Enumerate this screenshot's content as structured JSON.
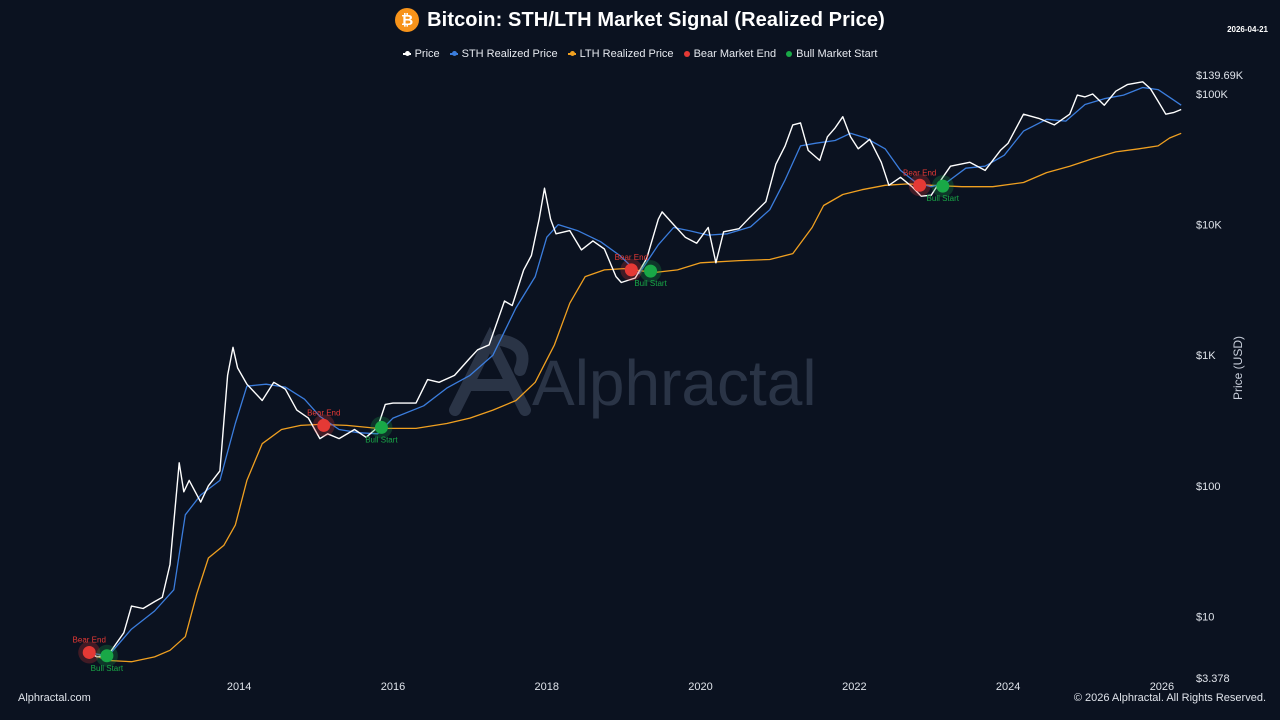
{
  "header": {
    "title": "Bitcoin: STH/LTH Market Signal (Realized Price)",
    "date": "2026-04-21",
    "icon": "bitcoin-icon",
    "icon_glyph": "₿",
    "icon_color": "#f7931a"
  },
  "legend": {
    "items": [
      {
        "label": "Price",
        "color": "#ffffff",
        "kind": "line"
      },
      {
        "label": "STH Realized Price",
        "color": "#3b7ddd",
        "kind": "line"
      },
      {
        "label": "LTH Realized Price",
        "color": "#f0a020",
        "kind": "line"
      },
      {
        "label": "Bear Market End",
        "color": "#e53935",
        "kind": "dot"
      },
      {
        "label": "Bull Market Start",
        "color": "#19a847",
        "kind": "dot"
      }
    ]
  },
  "watermark": {
    "text": "Alphractal"
  },
  "footer": {
    "left": "Alphractal.com",
    "right": "© 2026 Alphractal. All Rights Reserved."
  },
  "chart_data": {
    "type": "line",
    "title": "Bitcoin: STH/LTH Market Signal (Realized Price)",
    "xlabel": "",
    "ylabel": "Price (USD)",
    "y_scale": "log",
    "ylim": [
      3.378,
      139690
    ],
    "xlim": [
      2011.8,
      2026.3
    ],
    "x_ticks": [
      2014,
      2016,
      2018,
      2020,
      2022,
      2024,
      2026
    ],
    "x_tick_labels": [
      "2014",
      "2016",
      "2018",
      "2020",
      "2022",
      "2024",
      "2026"
    ],
    "y_ticks": [
      {
        "value": 3.378,
        "label": "$3.378"
      },
      {
        "value": 10,
        "label": "$10"
      },
      {
        "value": 100,
        "label": "$100"
      },
      {
        "value": 1000,
        "label": "$1K"
      },
      {
        "value": 10000,
        "label": "$10K"
      },
      {
        "value": 100000,
        "label": "$100K"
      },
      {
        "value": 139690,
        "label": "$139.69K"
      }
    ],
    "grid": false,
    "legend_position": "top-center",
    "series": [
      {
        "name": "Price",
        "color": "#ffffff",
        "points": [
          [
            2012.0,
            5.5
          ],
          [
            2012.15,
            4.9
          ],
          [
            2012.3,
            5.1
          ],
          [
            2012.5,
            7.5
          ],
          [
            2012.6,
            12
          ],
          [
            2012.75,
            11.5
          ],
          [
            2012.9,
            13
          ],
          [
            2013.0,
            14
          ],
          [
            2013.1,
            25
          ],
          [
            2013.22,
            150
          ],
          [
            2013.28,
            90
          ],
          [
            2013.35,
            110
          ],
          [
            2013.5,
            75
          ],
          [
            2013.6,
            100
          ],
          [
            2013.75,
            130
          ],
          [
            2013.85,
            700
          ],
          [
            2013.92,
            1150
          ],
          [
            2013.98,
            800
          ],
          [
            2014.1,
            600
          ],
          [
            2014.3,
            450
          ],
          [
            2014.45,
            620
          ],
          [
            2014.6,
            550
          ],
          [
            2014.75,
            380
          ],
          [
            2014.9,
            330
          ],
          [
            2015.05,
            230
          ],
          [
            2015.15,
            250
          ],
          [
            2015.3,
            230
          ],
          [
            2015.5,
            270
          ],
          [
            2015.65,
            235
          ],
          [
            2015.8,
            280
          ],
          [
            2015.9,
            420
          ],
          [
            2016.0,
            430
          ],
          [
            2016.3,
            430
          ],
          [
            2016.45,
            650
          ],
          [
            2016.6,
            620
          ],
          [
            2016.8,
            700
          ],
          [
            2017.0,
            950
          ],
          [
            2017.1,
            1100
          ],
          [
            2017.25,
            1200
          ],
          [
            2017.45,
            2600
          ],
          [
            2017.55,
            2400
          ],
          [
            2017.7,
            4500
          ],
          [
            2017.8,
            5800
          ],
          [
            2017.9,
            11000
          ],
          [
            2017.97,
            19000
          ],
          [
            2018.05,
            11000
          ],
          [
            2018.12,
            8500
          ],
          [
            2018.3,
            9000
          ],
          [
            2018.45,
            6400
          ],
          [
            2018.6,
            7500
          ],
          [
            2018.75,
            6500
          ],
          [
            2018.9,
            4000
          ],
          [
            2018.97,
            3600
          ],
          [
            2019.15,
            3900
          ],
          [
            2019.3,
            5500
          ],
          [
            2019.45,
            11000
          ],
          [
            2019.5,
            12500
          ],
          [
            2019.65,
            10000
          ],
          [
            2019.8,
            8000
          ],
          [
            2019.95,
            7200
          ],
          [
            2020.1,
            9500
          ],
          [
            2020.2,
            5100
          ],
          [
            2020.3,
            8800
          ],
          [
            2020.5,
            9300
          ],
          [
            2020.65,
            11500
          ],
          [
            2020.85,
            15000
          ],
          [
            2020.98,
            29000
          ],
          [
            2021.1,
            40000
          ],
          [
            2021.2,
            58000
          ],
          [
            2021.3,
            60000
          ],
          [
            2021.4,
            37000
          ],
          [
            2021.55,
            31000
          ],
          [
            2021.65,
            47000
          ],
          [
            2021.75,
            55000
          ],
          [
            2021.85,
            67000
          ],
          [
            2021.95,
            47000
          ],
          [
            2022.05,
            38000
          ],
          [
            2022.2,
            45000
          ],
          [
            2022.35,
            30000
          ],
          [
            2022.45,
            20000
          ],
          [
            2022.6,
            23000
          ],
          [
            2022.75,
            19500
          ],
          [
            2022.87,
            16500
          ],
          [
            2023.0,
            16800
          ],
          [
            2023.15,
            23000
          ],
          [
            2023.25,
            28000
          ],
          [
            2023.5,
            30000
          ],
          [
            2023.7,
            26000
          ],
          [
            2023.9,
            37000
          ],
          [
            2024.0,
            42000
          ],
          [
            2024.2,
            70000
          ],
          [
            2024.4,
            65000
          ],
          [
            2024.6,
            58000
          ],
          [
            2024.8,
            70000
          ],
          [
            2024.9,
            98000
          ],
          [
            2025.0,
            95000
          ],
          [
            2025.1,
            100000
          ],
          [
            2025.25,
            82000
          ],
          [
            2025.4,
            105000
          ],
          [
            2025.55,
            118000
          ],
          [
            2025.75,
            124000
          ],
          [
            2025.85,
            110000
          ],
          [
            2025.95,
            88000
          ],
          [
            2026.05,
            70000
          ],
          [
            2026.15,
            72000
          ],
          [
            2026.25,
            76000
          ]
        ]
      },
      {
        "name": "STH Realized Price",
        "color": "#3b7ddd",
        "points": [
          [
            2012.0,
            5.3
          ],
          [
            2012.3,
            5.0
          ],
          [
            2012.6,
            8
          ],
          [
            2012.9,
            11
          ],
          [
            2013.15,
            16
          ],
          [
            2013.3,
            60
          ],
          [
            2013.5,
            85
          ],
          [
            2013.75,
            110
          ],
          [
            2013.95,
            300
          ],
          [
            2014.1,
            580
          ],
          [
            2014.35,
            600
          ],
          [
            2014.6,
            570
          ],
          [
            2014.85,
            460
          ],
          [
            2015.05,
            340
          ],
          [
            2015.3,
            270
          ],
          [
            2015.55,
            255
          ],
          [
            2015.8,
            250
          ],
          [
            2016.0,
            330
          ],
          [
            2016.4,
            410
          ],
          [
            2016.7,
            560
          ],
          [
            2017.0,
            700
          ],
          [
            2017.3,
            1000
          ],
          [
            2017.6,
            2300
          ],
          [
            2017.85,
            4000
          ],
          [
            2018.0,
            8000
          ],
          [
            2018.15,
            10000
          ],
          [
            2018.4,
            9000
          ],
          [
            2018.7,
            7400
          ],
          [
            2018.95,
            5800
          ],
          [
            2019.2,
            4200
          ],
          [
            2019.45,
            7000
          ],
          [
            2019.65,
            9500
          ],
          [
            2019.85,
            9000
          ],
          [
            2020.1,
            8300
          ],
          [
            2020.35,
            8500
          ],
          [
            2020.65,
            9600
          ],
          [
            2020.9,
            13000
          ],
          [
            2021.1,
            22000
          ],
          [
            2021.3,
            40000
          ],
          [
            2021.5,
            42000
          ],
          [
            2021.75,
            44000
          ],
          [
            2021.95,
            50000
          ],
          [
            2022.15,
            46000
          ],
          [
            2022.4,
            38000
          ],
          [
            2022.6,
            26000
          ],
          [
            2022.8,
            21000
          ],
          [
            2023.0,
            19500
          ],
          [
            2023.2,
            21000
          ],
          [
            2023.45,
            27000
          ],
          [
            2023.7,
            28000
          ],
          [
            2023.95,
            34000
          ],
          [
            2024.2,
            52000
          ],
          [
            2024.5,
            64000
          ],
          [
            2024.75,
            62000
          ],
          [
            2025.0,
            83000
          ],
          [
            2025.25,
            92000
          ],
          [
            2025.5,
            98000
          ],
          [
            2025.75,
            112000
          ],
          [
            2025.95,
            108000
          ],
          [
            2026.15,
            90000
          ],
          [
            2026.25,
            82000
          ]
        ]
      },
      {
        "name": "LTH Realized Price",
        "color": "#f0a020",
        "points": [
          [
            2012.0,
            5.3
          ],
          [
            2012.3,
            4.6
          ],
          [
            2012.6,
            4.5
          ],
          [
            2012.9,
            4.9
          ],
          [
            2013.1,
            5.5
          ],
          [
            2013.3,
            7
          ],
          [
            2013.45,
            15
          ],
          [
            2013.6,
            28
          ],
          [
            2013.8,
            35
          ],
          [
            2013.95,
            50
          ],
          [
            2014.1,
            110
          ],
          [
            2014.3,
            210
          ],
          [
            2014.55,
            270
          ],
          [
            2014.8,
            290
          ],
          [
            2015.05,
            295
          ],
          [
            2015.4,
            290
          ],
          [
            2015.8,
            275
          ],
          [
            2016.3,
            275
          ],
          [
            2016.7,
            300
          ],
          [
            2017.0,
            330
          ],
          [
            2017.3,
            380
          ],
          [
            2017.6,
            450
          ],
          [
            2017.85,
            620
          ],
          [
            2018.1,
            1200
          ],
          [
            2018.3,
            2500
          ],
          [
            2018.5,
            4000
          ],
          [
            2018.75,
            4500
          ],
          [
            2019.0,
            4600
          ],
          [
            2019.4,
            4300
          ],
          [
            2019.7,
            4500
          ],
          [
            2020.0,
            5100
          ],
          [
            2020.5,
            5300
          ],
          [
            2020.9,
            5400
          ],
          [
            2021.2,
            6000
          ],
          [
            2021.45,
            9500
          ],
          [
            2021.6,
            14000
          ],
          [
            2021.85,
            17000
          ],
          [
            2022.1,
            18500
          ],
          [
            2022.4,
            20000
          ],
          [
            2022.7,
            20500
          ],
          [
            2023.0,
            20000
          ],
          [
            2023.4,
            19500
          ],
          [
            2023.8,
            19500
          ],
          [
            2024.2,
            21000
          ],
          [
            2024.5,
            25000
          ],
          [
            2024.8,
            28000
          ],
          [
            2025.1,
            32000
          ],
          [
            2025.4,
            36000
          ],
          [
            2025.7,
            38000
          ],
          [
            2025.95,
            40000
          ],
          [
            2026.1,
            46000
          ],
          [
            2026.25,
            50000
          ]
        ]
      }
    ],
    "signals": [
      {
        "type": "Bear Market End",
        "label": "Bear End",
        "date": 2012.05,
        "value": 5.3
      },
      {
        "type": "Bull Market Start",
        "label": "Bull Start",
        "date": 2012.28,
        "value": 5.0
      },
      {
        "type": "Bear Market End",
        "label": "Bear End",
        "date": 2015.1,
        "value": 290
      },
      {
        "type": "Bull Market Start",
        "label": "Bull Start",
        "date": 2015.85,
        "value": 280
      },
      {
        "type": "Bear Market End",
        "label": "Bear End",
        "date": 2019.1,
        "value": 4500
      },
      {
        "type": "Bull Market Start",
        "label": "Bull Start",
        "date": 2019.35,
        "value": 4400
      },
      {
        "type": "Bear Market End",
        "label": "Bear End",
        "date": 2022.85,
        "value": 20000
      },
      {
        "type": "Bull Market Start",
        "label": "Bull Start",
        "date": 2023.15,
        "value": 19700
      }
    ],
    "signal_colors": {
      "Bear Market End": "#e53935",
      "Bull Market Start": "#19a847"
    }
  }
}
